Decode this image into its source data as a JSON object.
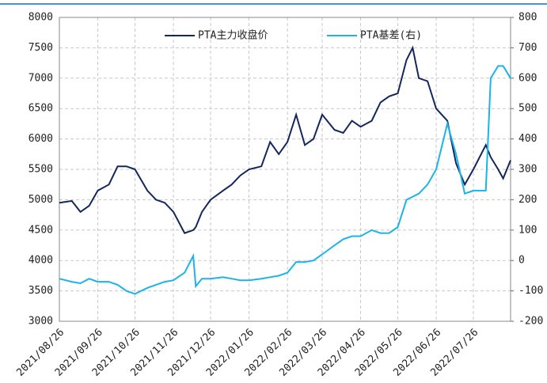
{
  "chart_data": {
    "type": "line",
    "x": [
      "2021/08/26",
      "2021/09/05",
      "2021/09/12",
      "2021/09/19",
      "2021/09/26",
      "2021/10/05",
      "2021/10/12",
      "2021/10/19",
      "2021/10/26",
      "2021/11/05",
      "2021/11/12",
      "2021/11/19",
      "2021/11/26",
      "2021/12/05",
      "2021/12/12",
      "2021/12/14",
      "2021/12/19",
      "2021/12/26",
      "2022/01/05",
      "2022/01/12",
      "2022/01/19",
      "2022/01/26",
      "2022/02/05",
      "2022/02/12",
      "2022/02/19",
      "2022/02/26",
      "2022/03/05",
      "2022/03/12",
      "2022/03/19",
      "2022/03/26",
      "2022/04/05",
      "2022/04/12",
      "2022/04/19",
      "2022/04/26",
      "2022/05/05",
      "2022/05/12",
      "2022/05/19",
      "2022/05/26",
      "2022/06/02",
      "2022/06/07",
      "2022/06/12",
      "2022/06/19",
      "2022/06/26",
      "2022/07/05",
      "2022/07/12",
      "2022/07/19",
      "2022/07/26",
      "2022/08/05",
      "2022/08/09",
      "2022/08/15",
      "2022/08/19",
      "2022/08/25"
    ],
    "series": [
      {
        "name": "PTA主力收盘价",
        "color": "#13275e",
        "values": [
          4950,
          4980,
          4800,
          4900,
          5150,
          5250,
          5550,
          5550,
          5500,
          5150,
          5000,
          4950,
          4800,
          4450,
          4500,
          4550,
          4800,
          5000,
          5150,
          5250,
          5400,
          5500,
          5550,
          5950,
          5750,
          5950,
          6400,
          5900,
          6000,
          6400,
          6150,
          6100,
          6300,
          6200,
          6300,
          6600,
          6700,
          6750,
          7300,
          7500,
          7000,
          6950,
          6500,
          6300,
          5600,
          5250,
          5500,
          5900,
          5700,
          5500,
          5350,
          5650
        ]
      },
      {
        "name": "PTA基差(右)",
        "color": "#1ab4e8",
        "axis": "y2",
        "values": [
          -60,
          -70,
          -75,
          -60,
          -70,
          -70,
          -80,
          -100,
          -110,
          -90,
          -80,
          -70,
          -65,
          -40,
          15,
          -85,
          -60,
          -60,
          -55,
          -60,
          -65,
          -65,
          -60,
          -55,
          -50,
          -40,
          -5,
          -5,
          0,
          20,
          50,
          70,
          80,
          80,
          100,
          90,
          90,
          110,
          200,
          210,
          220,
          250,
          300,
          450,
          350,
          220,
          230,
          230,
          600,
          640,
          640,
          600
        ]
      }
    ],
    "xlim": [
      "2021/08/26",
      "2022/08/25"
    ],
    "xticks": [
      "2021/08/26",
      "2021/09/26",
      "2021/10/26",
      "2021/11/26",
      "2021/12/26",
      "2022/01/26",
      "2022/02/26",
      "2022/03/26",
      "2022/04/26",
      "2022/05/26",
      "2022/06/26",
      "2022/07/26"
    ],
    "ylim": [
      3000,
      8000
    ],
    "yticks": [
      3000,
      3500,
      4000,
      4500,
      5000,
      5500,
      6000,
      6500,
      7000,
      7500,
      8000
    ],
    "y2lim": [
      -200,
      800
    ],
    "y2ticks": [
      -200,
      -100,
      0,
      100,
      200,
      300,
      400,
      500,
      600,
      700,
      800
    ],
    "grid": true,
    "legend": "top"
  }
}
